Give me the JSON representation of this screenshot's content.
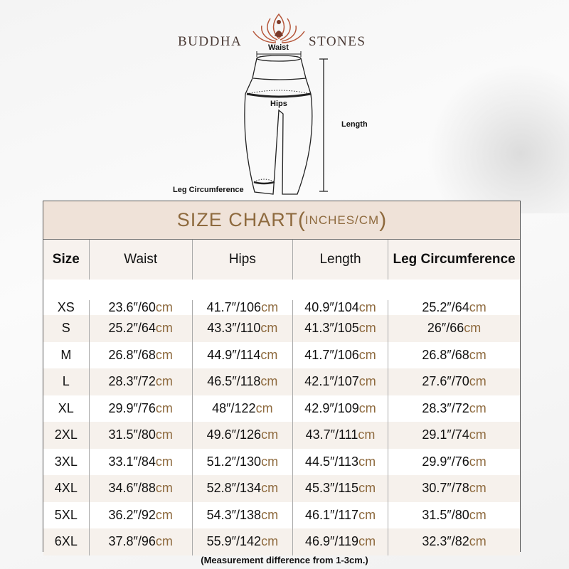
{
  "brand": {
    "left": "BUDDHA",
    "right": "STONES"
  },
  "diagram": {
    "waist": "Waist",
    "hips": "Hips",
    "length": "Length",
    "leg": "Leg Circumference"
  },
  "chart": {
    "title": "SIZE CHART",
    "subtitle_open": "(",
    "subtitle": "INCHES/CM",
    "subtitle_close": ")",
    "headers": [
      "Size",
      "Waist",
      "Hips",
      "Length",
      "Leg Circumference"
    ],
    "unit": "cm",
    "rows": [
      {
        "size": "XS",
        "cells": [
          "23.6″/60",
          "41.7″/106",
          "40.9″/104",
          "25.2″/64"
        ]
      },
      {
        "size": "S",
        "cells": [
          "25.2″/64",
          "43.3″/110",
          "41.3″/105",
          "26″/66"
        ]
      },
      {
        "size": "M",
        "cells": [
          "26.8″/68",
          "44.9″/114",
          "41.7″/106",
          "26.8″/68"
        ]
      },
      {
        "size": "L",
        "cells": [
          "28.3″/72",
          "46.5″/118",
          "42.1″/107",
          "27.6″/70"
        ]
      },
      {
        "size": "XL",
        "cells": [
          "29.9″/76",
          "48″/122",
          "42.9″/109",
          "28.3″/72"
        ]
      },
      {
        "size": "2XL",
        "cells": [
          "31.5″/80",
          "49.6″/126",
          "43.7″/111",
          "29.1″/74"
        ]
      },
      {
        "size": "3XL",
        "cells": [
          "33.1″/84",
          "51.2″/130",
          "44.5″/113",
          "29.9″/76"
        ]
      },
      {
        "size": "4XL",
        "cells": [
          "34.6″/88",
          "52.8″/134",
          "45.3″/115",
          "30.7″/78"
        ]
      },
      {
        "size": "5XL",
        "cells": [
          "36.2″/92",
          "54.3″/138",
          "46.1″/117",
          "31.5″/80"
        ]
      },
      {
        "size": "6XL",
        "cells": [
          "37.8″/96",
          "55.9″/142",
          "46.9″/119",
          "32.3″/82"
        ]
      }
    ]
  },
  "note": "(Measurement difference from 1-3cm.)",
  "colors": {
    "accent": "#8e6a3e",
    "title_band": "#efe2d8",
    "row_shade": "#f6f1ec",
    "logo": "#b5563a"
  }
}
